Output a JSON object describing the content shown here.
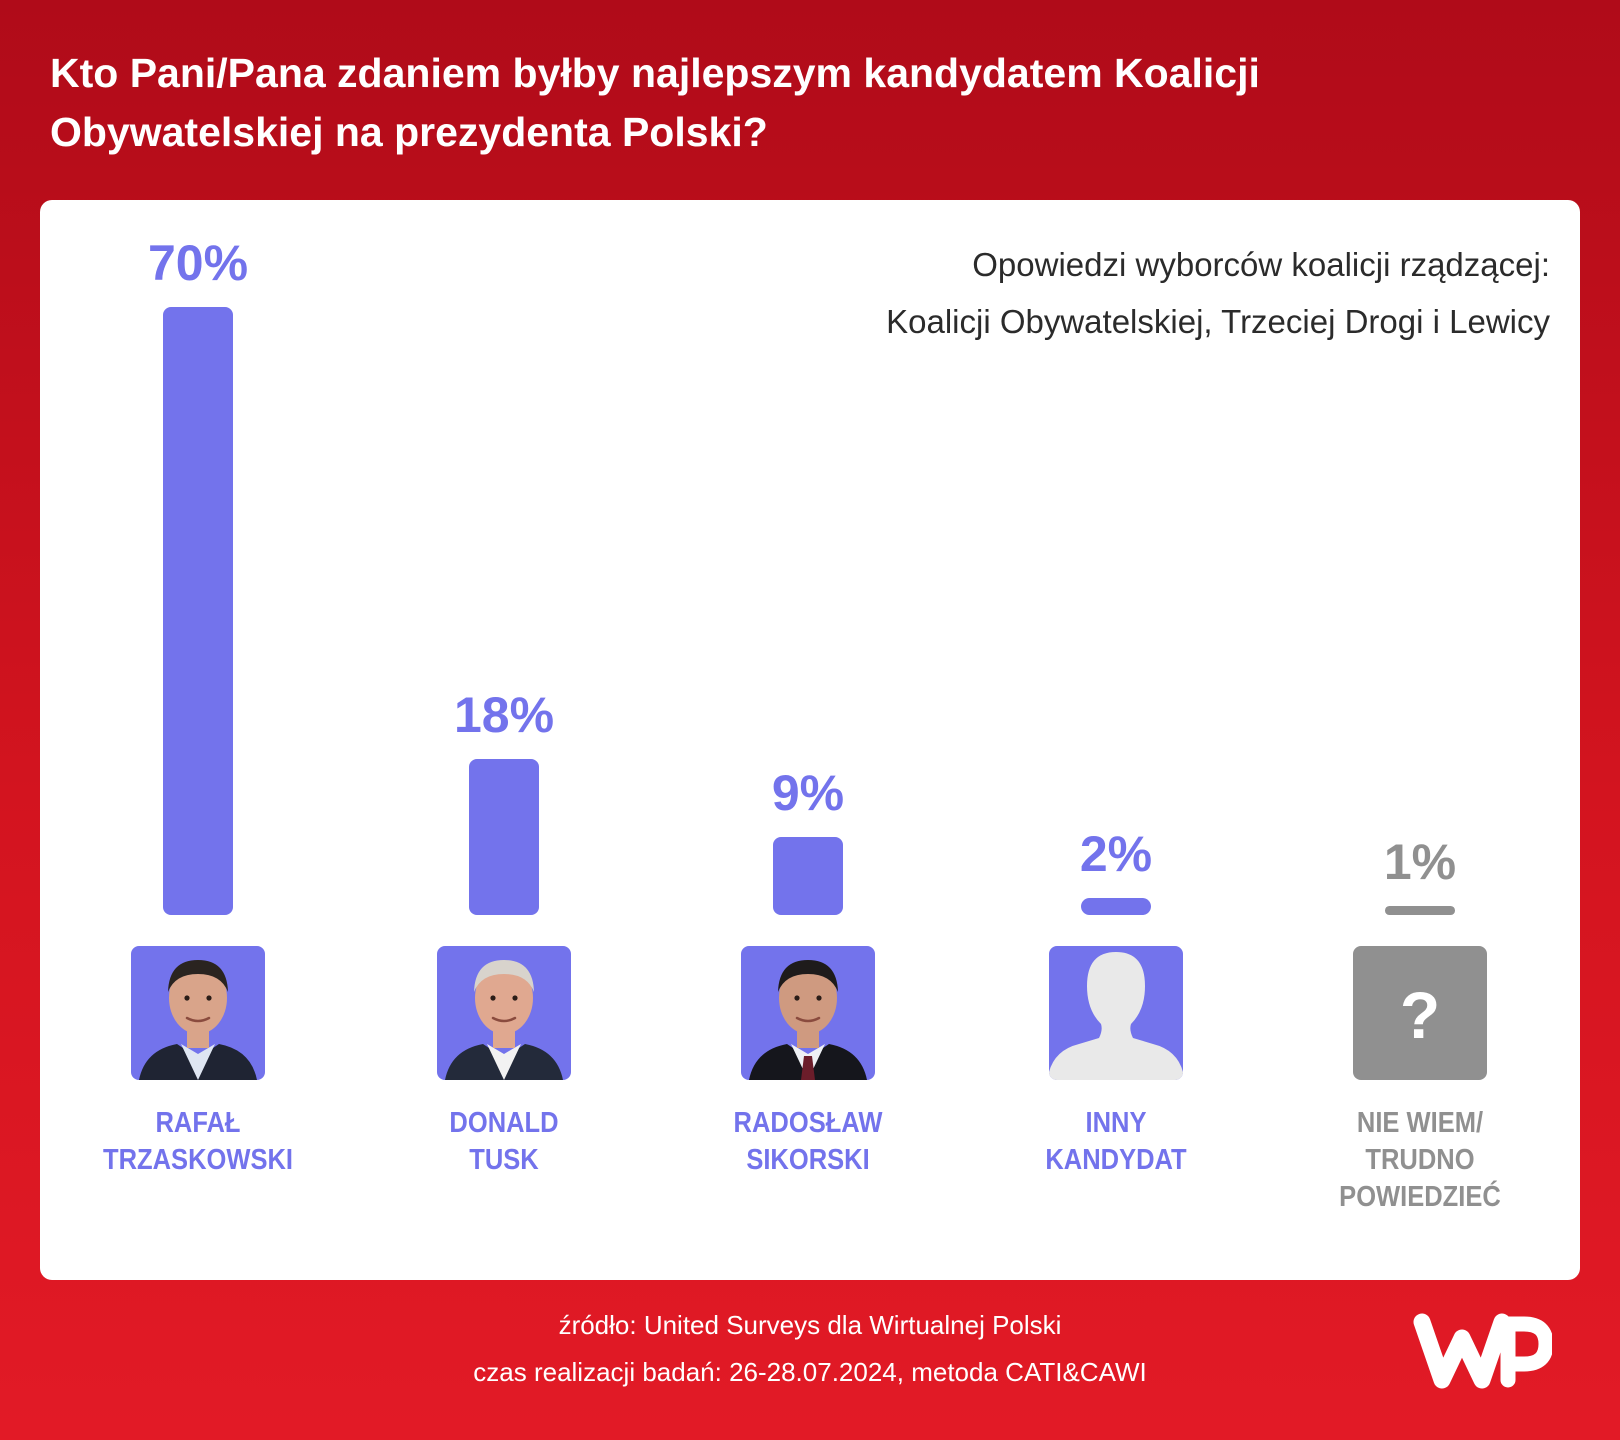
{
  "header": {
    "title": "Kto Pani/Pana zdaniem byłby najlepszym kandydatem Koalicji Obywatelskiej na prezydenta Polski?"
  },
  "chart_data": {
    "type": "bar",
    "title": "Kto Pani/Pana zdaniem byłby najlepszym kandydatem Koalicji Obywatelskiej na prezydenta Polski?",
    "subtitle": "Opowiedzi wyborców koalicji rządzącej: Koalicji Obywatelskiej, Trzeciej Drogi i Lewicy",
    "subtitle_lines": [
      "Opowiedzi wyborców koalicji rządzącej:",
      "Koalicji Obywatelskiej, Trzeciej Drogi i Lewicy"
    ],
    "categories": [
      "RAFAŁ TRZASKOWSKI",
      "DONALD TUSK",
      "RADOSŁAW SIKORSKI",
      "INNY KANDYDAT",
      "NIE WIEM/ TRUDNO POWIEDZIEĆ"
    ],
    "values": [
      70,
      18,
      9,
      2,
      1
    ],
    "unit": "%",
    "ylim": [
      0,
      70
    ],
    "grid": false,
    "legend": "none",
    "xlabel": "",
    "ylabel": "",
    "candidates": [
      {
        "value": 70,
        "value_label": "70%",
        "name_lines": [
          "RAFAŁ",
          "TRZASKOWSKI"
        ],
        "avatar": "photo-man-dark-hair-icon",
        "color": "#7373ec"
      },
      {
        "value": 18,
        "value_label": "18%",
        "name_lines": [
          "DONALD",
          "TUSK"
        ],
        "avatar": "photo-man-grey-hair-icon",
        "color": "#7373ec"
      },
      {
        "value": 9,
        "value_label": "9%",
        "name_lines": [
          "RADOSŁAW",
          "SIKORSKI"
        ],
        "avatar": "photo-man-dark-suit-icon",
        "color": "#7373ec"
      },
      {
        "value": 2,
        "value_label": "2%",
        "name_lines": [
          "INNY",
          "KANDYDAT"
        ],
        "avatar": "person-silhouette-icon",
        "color": "#7373ec"
      },
      {
        "value": 1,
        "value_label": "1%",
        "name_lines": [
          "NIE WIEM/",
          "TRUDNO",
          "POWIEDZIEĆ"
        ],
        "avatar": "question-mark-icon",
        "color": "#909090"
      }
    ]
  },
  "footer": {
    "source": "źródło: United Surveys dla Wirtualnej Polski",
    "details": "czas realizacji badań: 26-28.07.2024, metoda CATI&CAWI"
  },
  "logo": {
    "name": "wp-logo-icon",
    "text": "WP"
  },
  "colors": {
    "bar": "#7373ec",
    "muted": "#909090",
    "background_top": "#b00b19",
    "background_bottom": "#e21a26"
  }
}
